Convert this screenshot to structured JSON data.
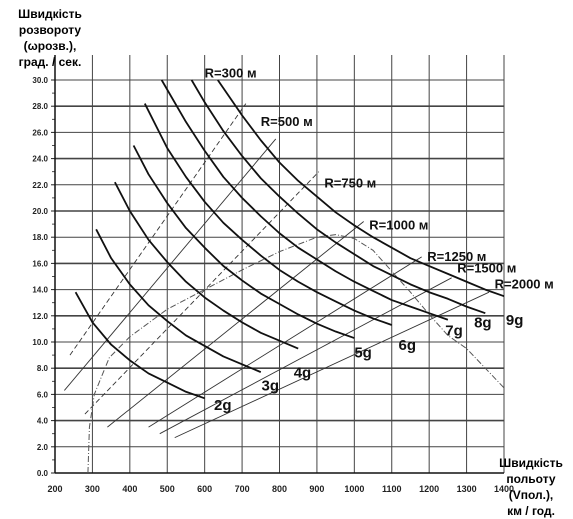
{
  "chart_data": {
    "type": "line",
    "ylabel": [
      "Швидкість",
      "розвороту",
      "(ωрозв.),",
      "град. / сек."
    ],
    "xlabel": [
      "Швидкість",
      "польоту",
      "(Vпол.),",
      "км / год."
    ],
    "xlim": [
      200,
      1400
    ],
    "ylim": [
      0,
      30
    ],
    "x_ticks": [
      "200",
      "300",
      "400",
      "500",
      "600",
      "700",
      "800",
      "900",
      "1000",
      "1100",
      "1200",
      "1300",
      "1400"
    ],
    "y_ticks": [
      "0.0",
      "2.0",
      "4.0",
      "6.0",
      "8.0",
      "10.0",
      "12.0",
      "14.0",
      "16.0",
      "18.0",
      "20.0",
      "22.0",
      "24.0",
      "26.0",
      "28.0",
      "30.0"
    ],
    "grid": true,
    "g_series": [
      {
        "name": "2g",
        "x": [
          255,
          300,
          350,
          400,
          450,
          500,
          550,
          600
        ],
        "y": [
          13.8,
          11.5,
          9.8,
          8.6,
          7.6,
          6.9,
          6.2,
          5.7
        ]
      },
      {
        "name": "3g",
        "x": [
          310,
          350,
          400,
          450,
          500,
          550,
          600,
          650,
          700,
          750
        ],
        "y": [
          18.6,
          16.4,
          14.4,
          12.8,
          11.6,
          10.5,
          9.7,
          8.9,
          8.3,
          7.7
        ]
      },
      {
        "name": "4g",
        "x": [
          360,
          400,
          450,
          500,
          550,
          600,
          650,
          700,
          750,
          800,
          850
        ],
        "y": [
          22.2,
          20.0,
          17.8,
          16.1,
          14.6,
          13.4,
          12.4,
          11.5,
          10.7,
          10.1,
          9.5
        ]
      },
      {
        "name": "5g",
        "x": [
          410,
          450,
          500,
          550,
          600,
          650,
          700,
          750,
          800,
          850,
          900,
          950,
          1000
        ],
        "y": [
          25.0,
          22.8,
          20.6,
          18.7,
          17.2,
          15.8,
          14.7,
          13.7,
          12.9,
          12.1,
          11.4,
          10.8,
          10.3
        ]
      },
      {
        "name": "6g",
        "x": [
          440,
          500,
          550,
          600,
          650,
          700,
          750,
          800,
          850,
          900,
          950,
          1000,
          1050,
          1100
        ],
        "y": [
          28.2,
          24.8,
          22.6,
          20.7,
          19.1,
          17.8,
          16.6,
          15.5,
          14.6,
          13.8,
          13.1,
          12.4,
          11.8,
          11.3
        ]
      },
      {
        "name": "7g",
        "x": [
          485,
          550,
          600,
          650,
          700,
          750,
          800,
          850,
          900,
          950,
          1000,
          1050,
          1100,
          1150,
          1200,
          1250
        ],
        "y": [
          30.0,
          26.8,
          24.6,
          22.6,
          21.0,
          19.6,
          18.3,
          17.2,
          16.3,
          15.4,
          14.6,
          13.9,
          13.2,
          12.7,
          12.2,
          11.7
        ]
      },
      {
        "name": "8g",
        "x": [
          565,
          600,
          650,
          700,
          750,
          800,
          850,
          900,
          950,
          1000,
          1050,
          1100,
          1150,
          1200,
          1250,
          1300,
          1350
        ],
        "y": [
          30.0,
          28.3,
          26.1,
          24.2,
          22.5,
          21.1,
          19.8,
          18.6,
          17.6,
          16.7,
          15.8,
          15.1,
          14.4,
          13.8,
          13.3,
          12.7,
          12.2
        ]
      },
      {
        "name": "9g",
        "x": [
          635,
          700,
          750,
          800,
          850,
          900,
          950,
          1000,
          1050,
          1100,
          1150,
          1200,
          1250,
          1300,
          1350,
          1400,
          1420
        ],
        "y": [
          30.0,
          27.3,
          25.4,
          23.7,
          22.3,
          21.1,
          19.9,
          18.9,
          18.0,
          17.2,
          16.4,
          15.8,
          15.2,
          14.6,
          14.0,
          13.5,
          13.3
        ]
      }
    ],
    "g_labels": [
      {
        "text": "2g",
        "x": 625,
        "y": 4.8
      },
      {
        "text": "3g",
        "x": 752,
        "y": 6.3
      },
      {
        "text": "4g",
        "x": 838,
        "y": 7.3
      },
      {
        "text": "5g",
        "x": 1000,
        "y": 8.8
      },
      {
        "text": "6g",
        "x": 1118,
        "y": 9.4
      },
      {
        "text": "7g",
        "x": 1243,
        "y": 10.5
      },
      {
        "text": "8g",
        "x": 1320,
        "y": 11.1
      },
      {
        "text": "9g",
        "x": 1405,
        "y": 11.3
      }
    ],
    "r_series": [
      {
        "name": "R=300 м",
        "x": [
          240,
          710
        ],
        "y": [
          9.0,
          28.2
        ]
      },
      {
        "name": "R=500 м",
        "x": [
          225,
          790
        ],
        "y": [
          6.3,
          25.5
        ]
      },
      {
        "name": "R=750 м",
        "x": [
          280,
          905
        ],
        "y": [
          4.5,
          23.0
        ]
      },
      {
        "name": "R=1000 м",
        "x": [
          340,
          1025
        ],
        "y": [
          3.5,
          19.2
        ]
      },
      {
        "name": "R=1250 м",
        "x": [
          450,
          1180
        ],
        "y": [
          3.5,
          16.5
        ]
      },
      {
        "name": "R=1500 м",
        "x": [
          480,
          1260
        ],
        "y": [
          3.0,
          14.9
        ]
      },
      {
        "name": "R=2000 м",
        "x": [
          520,
          1360
        ],
        "y": [
          2.7,
          13.8
        ]
      }
    ],
    "r_labels": [
      {
        "text": "R=300 м",
        "x": 600,
        "y": 30.2
      },
      {
        "text": "R=500 м",
        "x": 750,
        "y": 26.5
      },
      {
        "text": "R=750 м",
        "x": 920,
        "y": 21.8
      },
      {
        "text": "R=1000 м",
        "x": 1040,
        "y": 18.6
      },
      {
        "text": "R=1250 м",
        "x": 1195,
        "y": 16.2
      },
      {
        "text": "R=1500 м",
        "x": 1275,
        "y": 15.3
      },
      {
        "text": "R=2000 м",
        "x": 1375,
        "y": 14.1
      }
    ],
    "envelope": [
      {
        "x": 288,
        "y": 0.0
      },
      {
        "x": 292,
        "y": 3.5
      },
      {
        "x": 305,
        "y": 6.0
      },
      {
        "x": 345,
        "y": 8.8
      },
      {
        "x": 400,
        "y": 10.4
      },
      {
        "x": 500,
        "y": 12.5
      },
      {
        "x": 600,
        "y": 14.0
      },
      {
        "x": 700,
        "y": 15.5
      },
      {
        "x": 800,
        "y": 16.9
      },
      {
        "x": 900,
        "y": 18.0
      },
      {
        "x": 950,
        "y": 18.2
      },
      {
        "x": 1000,
        "y": 17.9
      },
      {
        "x": 1050,
        "y": 17.0
      },
      {
        "x": 1100,
        "y": 15.4
      },
      {
        "x": 1150,
        "y": 13.8
      },
      {
        "x": 1200,
        "y": 12.1
      },
      {
        "x": 1250,
        "y": 10.5
      },
      {
        "x": 1300,
        "y": 9.5
      },
      {
        "x": 1350,
        "y": 8.0
      },
      {
        "x": 1400,
        "y": 6.5
      }
    ]
  }
}
